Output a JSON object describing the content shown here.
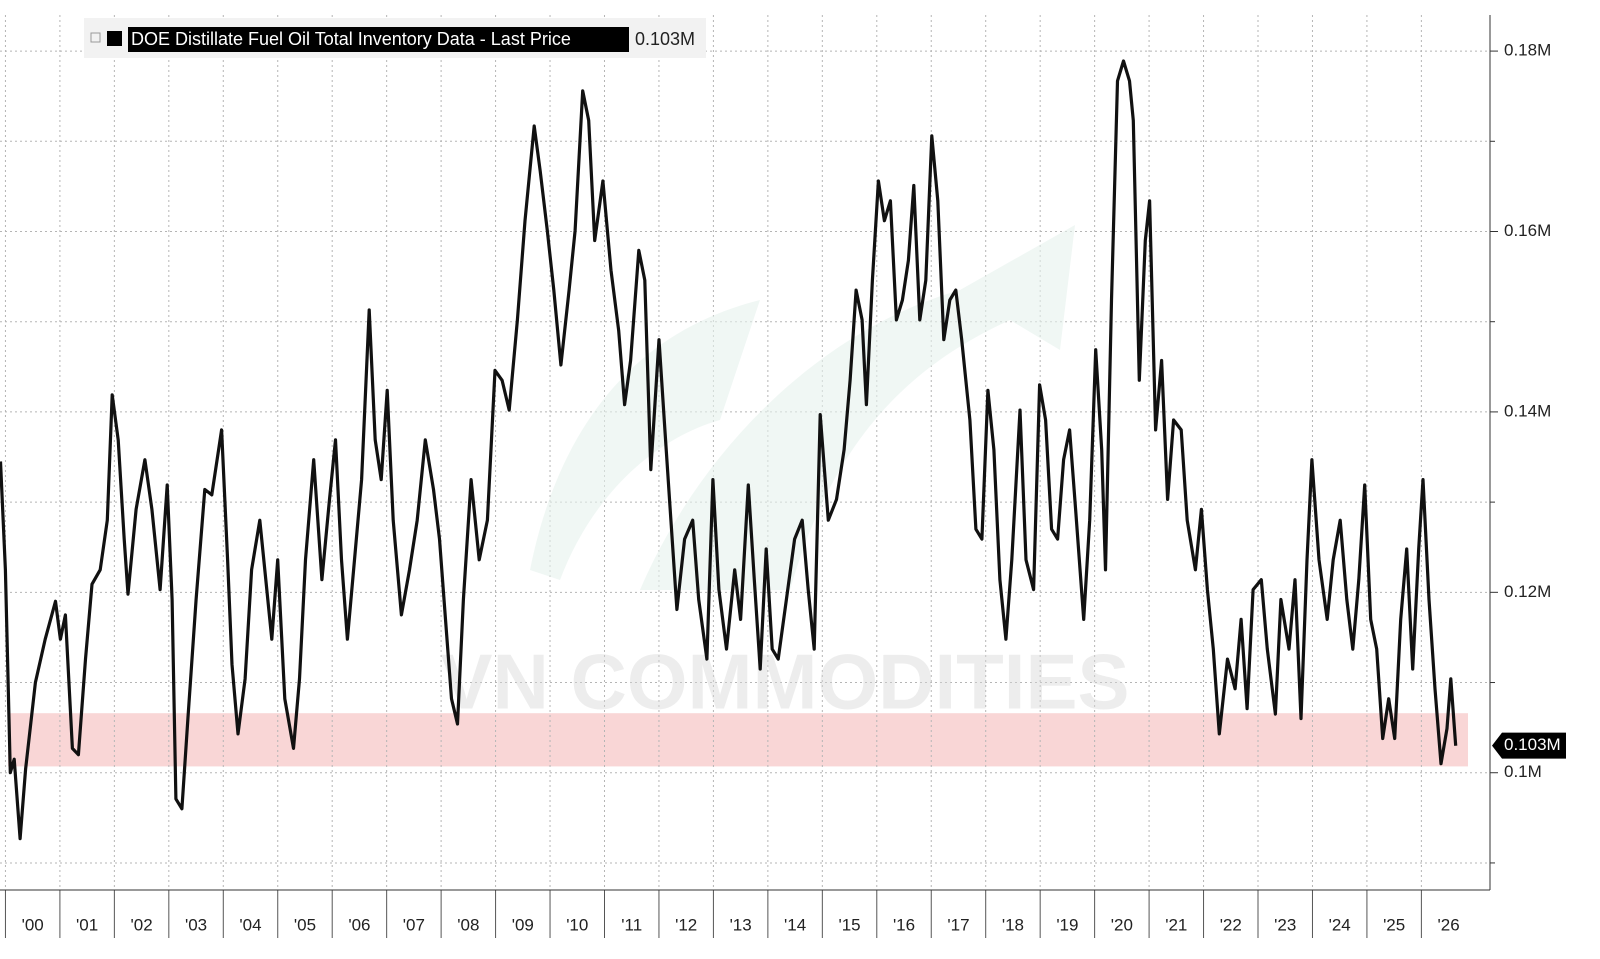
{
  "chart_data": {
    "type": "line",
    "legend_title": "DOE Distillate Fuel Oil Total Inventory Data - Last Price",
    "watermark": "VN COMMODITIES",
    "last_price": 0.103,
    "last_price_label": "0.103M",
    "highlight_band": [
      0.1007,
      0.1066
    ],
    "highlight_color": "#f9d6d6",
    "grid": true,
    "xlim": [
      1999.9,
      2027.26
    ],
    "ylim": [
      0.087,
      0.184
    ],
    "yticks": [
      {
        "value": 0.1,
        "label": "0.1M"
      },
      {
        "value": 0.12,
        "label": "0.12M"
      },
      {
        "value": 0.14,
        "label": "0.14M"
      },
      {
        "value": 0.16,
        "label": "0.16M"
      },
      {
        "value": 0.18,
        "label": "0.18M"
      }
    ],
    "minor_yticks": [
      0.09,
      0.11,
      0.13,
      0.15,
      0.17
    ],
    "xticks": [
      {
        "value": 2000,
        "label": "'00"
      },
      {
        "value": 2001,
        "label": "'01"
      },
      {
        "value": 2002,
        "label": "'02"
      },
      {
        "value": 2003,
        "label": "'03"
      },
      {
        "value": 2004,
        "label": "'04"
      },
      {
        "value": 2005,
        "label": "'05"
      },
      {
        "value": 2006,
        "label": "'06"
      },
      {
        "value": 2007,
        "label": "'07"
      },
      {
        "value": 2008,
        "label": "'08"
      },
      {
        "value": 2009,
        "label": "'09"
      },
      {
        "value": 2010,
        "label": "'10"
      },
      {
        "value": 2011,
        "label": "'11"
      },
      {
        "value": 2012,
        "label": "'12"
      },
      {
        "value": 2013,
        "label": "'13"
      },
      {
        "value": 2014,
        "label": "'14"
      },
      {
        "value": 2015,
        "label": "'15"
      },
      {
        "value": 2016,
        "label": "'16"
      },
      {
        "value": 2017,
        "label": "'17"
      },
      {
        "value": 2018,
        "label": "'18"
      },
      {
        "value": 2019,
        "label": "'19"
      },
      {
        "value": 2020,
        "label": "'20"
      },
      {
        "value": 2021,
        "label": "'21"
      },
      {
        "value": 2022,
        "label": "'22"
      },
      {
        "value": 2023,
        "label": "'23"
      },
      {
        "value": 2024,
        "label": "'24"
      },
      {
        "value": 2025,
        "label": "'25"
      },
      {
        "value": 2026,
        "label": "'26"
      }
    ],
    "series": [
      {
        "color": "#111111",
        "x": [
          1999.91,
          2000.0,
          2000.09,
          2000.16,
          2000.27,
          2000.37,
          2000.55,
          2000.73,
          2000.92,
          2001.01,
          2001.1,
          2001.23,
          2001.34,
          2001.47,
          2001.59,
          2001.74,
          2001.87,
          2001.96,
          2002.07,
          2002.18,
          2002.25,
          2002.4,
          2002.56,
          2002.69,
          2002.84,
          2002.97,
          2003.06,
          2003.13,
          2003.24,
          2003.35,
          2003.5,
          2003.66,
          2003.79,
          2003.97,
          2004.08,
          2004.16,
          2004.27,
          2004.4,
          2004.52,
          2004.67,
          2004.78,
          2004.89,
          2005.0,
          2005.13,
          2005.29,
          2005.4,
          2005.51,
          2005.66,
          2005.81,
          2005.95,
          2006.06,
          2006.17,
          2006.28,
          2006.41,
          2006.54,
          2006.68,
          2006.79,
          2006.9,
          2007.01,
          2007.12,
          2007.27,
          2007.42,
          2007.56,
          2007.71,
          2007.86,
          2007.97,
          2008.08,
          2008.19,
          2008.3,
          2008.41,
          2008.55,
          2008.7,
          2008.85,
          2008.99,
          2009.12,
          2009.25,
          2009.4,
          2009.54,
          2009.71,
          2009.82,
          2009.95,
          2010.07,
          2010.2,
          2010.35,
          2010.46,
          2010.6,
          2010.71,
          2010.82,
          2010.97,
          2011.12,
          2011.26,
          2011.37,
          2011.48,
          2011.63,
          2011.74,
          2011.85,
          2012.0,
          2012.11,
          2012.22,
          2012.33,
          2012.47,
          2012.62,
          2012.73,
          2012.88,
          2012.99,
          2013.1,
          2013.24,
          2013.39,
          2013.5,
          2013.64,
          2013.75,
          2013.86,
          2013.97,
          2014.08,
          2014.19,
          2014.34,
          2014.49,
          2014.63,
          2014.74,
          2014.85,
          2014.96,
          2015.11,
          2015.26,
          2015.4,
          2015.51,
          2015.62,
          2015.73,
          2015.81,
          2015.92,
          2016.03,
          2016.14,
          2016.25,
          2016.36,
          2016.47,
          2016.58,
          2016.68,
          2016.79,
          2016.9,
          2017.01,
          2017.12,
          2017.23,
          2017.34,
          2017.45,
          2017.56,
          2017.71,
          2017.82,
          2017.93,
          2018.04,
          2018.15,
          2018.26,
          2018.37,
          2018.48,
          2018.63,
          2018.74,
          2018.88,
          2018.99,
          2019.1,
          2019.21,
          2019.32,
          2019.43,
          2019.54,
          2019.65,
          2019.8,
          2019.91,
          2020.02,
          2020.13,
          2020.2,
          2020.31,
          2020.42,
          2020.53,
          2020.64,
          2020.71,
          2020.82,
          2020.93,
          2021.01,
          2021.12,
          2021.23,
          2021.34,
          2021.45,
          2021.59,
          2021.7,
          2021.85,
          2021.96,
          2022.07,
          2022.18,
          2022.29,
          2022.44,
          2022.58,
          2022.69,
          2022.8,
          2022.91,
          2023.06,
          2023.17,
          2023.32,
          2023.42,
          2023.57,
          2023.68,
          2023.79,
          2023.9,
          2023.99,
          2024.12,
          2024.27,
          2024.38,
          2024.51,
          2024.63,
          2024.74,
          2024.85,
          2024.96,
          2025.07,
          2025.18,
          2025.29,
          2025.4,
          2025.51,
          2025.62,
          2025.73,
          2025.84,
          2025.95,
          2026.03,
          2026.14,
          2026.25,
          2026.36,
          2026.47,
          2026.54,
          2026.63
        ],
        "values": [
          0.1345,
          0.1225,
          0.1,
          0.1015,
          0.0927,
          0.1004,
          0.11,
          0.1148,
          0.119,
          0.1148,
          0.1175,
          0.1027,
          0.102,
          0.1126,
          0.1209,
          0.1225,
          0.128,
          0.1419,
          0.1369,
          0.1259,
          0.1198,
          0.1292,
          0.1347,
          0.1292,
          0.1203,
          0.1319,
          0.1192,
          0.0971,
          0.096,
          0.106,
          0.1192,
          0.1314,
          0.1308,
          0.138,
          0.1236,
          0.112,
          0.1043,
          0.1104,
          0.1225,
          0.128,
          0.1214,
          0.1148,
          0.1236,
          0.1082,
          0.1027,
          0.1104,
          0.1236,
          0.1347,
          0.1214,
          0.1303,
          0.1369,
          0.1236,
          0.1148,
          0.1236,
          0.1325,
          0.1513,
          0.1369,
          0.1325,
          0.1424,
          0.128,
          0.1175,
          0.1225,
          0.128,
          0.1369,
          0.1314,
          0.1259,
          0.117,
          0.1082,
          0.1054,
          0.1192,
          0.1325,
          0.1236,
          0.128,
          0.1446,
          0.1435,
          0.1402,
          0.1502,
          0.1612,
          0.1717,
          0.1667,
          0.1601,
          0.1535,
          0.1452,
          0.1535,
          0.1601,
          0.1756,
          0.1723,
          0.159,
          0.1656,
          0.1557,
          0.149,
          0.1408,
          0.1457,
          0.1579,
          0.1546,
          0.1336,
          0.148,
          0.138,
          0.128,
          0.1181,
          0.1259,
          0.128,
          0.1192,
          0.1126,
          0.1325,
          0.1203,
          0.1137,
          0.1225,
          0.117,
          0.1319,
          0.1214,
          0.1115,
          0.1248,
          0.1137,
          0.1126,
          0.1192,
          0.1259,
          0.128,
          0.1203,
          0.1137,
          0.1397,
          0.128,
          0.1303,
          0.1358,
          0.1435,
          0.1535,
          0.1502,
          0.1408,
          0.1546,
          0.1656,
          0.1612,
          0.1634,
          0.1502,
          0.1524,
          0.1568,
          0.1651,
          0.1502,
          0.1546,
          0.1706,
          0.1634,
          0.148,
          0.1524,
          0.1535,
          0.148,
          0.1391,
          0.127,
          0.1259,
          0.1424,
          0.1358,
          0.1214,
          0.1148,
          0.1236,
          0.1402,
          0.1236,
          0.1203,
          0.143,
          0.1391,
          0.127,
          0.1259,
          0.1347,
          0.138,
          0.1292,
          0.117,
          0.128,
          0.1469,
          0.1358,
          0.1225,
          0.1524,
          0.1767,
          0.1789,
          0.1767,
          0.1723,
          0.1435,
          0.159,
          0.1634,
          0.138,
          0.1457,
          0.1303,
          0.1391,
          0.138,
          0.128,
          0.1225,
          0.1292,
          0.1203,
          0.1137,
          0.1043,
          0.1126,
          0.1093,
          0.117,
          0.1071,
          0.1203,
          0.1214,
          0.1137,
          0.1065,
          0.1192,
          0.1137,
          0.1214,
          0.106,
          0.1236,
          0.1347,
          0.1236,
          0.117,
          0.1236,
          0.128,
          0.1192,
          0.1137,
          0.1214,
          0.1319,
          0.117,
          0.1137,
          0.1038,
          0.1082,
          0.1038,
          0.117,
          0.1248,
          0.1115,
          0.1248,
          0.1325,
          0.1192,
          0.1093,
          0.101,
          0.1049,
          0.1104,
          0.103
        ]
      }
    ]
  }
}
